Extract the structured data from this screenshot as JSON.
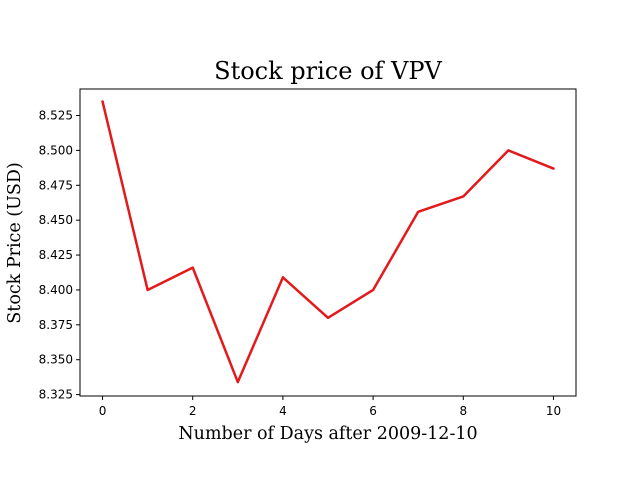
{
  "chart_data": {
    "type": "line",
    "title": "Stock price of VPV",
    "xlabel": "Number of Days after 2009-12-10",
    "ylabel": "Stock Price (USD)",
    "x": [
      0,
      1,
      2,
      3,
      4,
      5,
      6,
      7,
      8,
      9,
      10
    ],
    "series": [
      {
        "values": [
          8.535,
          8.4,
          8.416,
          8.334,
          8.409,
          8.38,
          8.4,
          8.456,
          8.467,
          8.5,
          8.487
        ],
        "color": "#e31a1c"
      }
    ],
    "xlim": [
      -0.5,
      10.5
    ],
    "ylim": [
      8.324,
      8.544
    ],
    "xticks": [
      0,
      2,
      4,
      6,
      8,
      10
    ],
    "xtick_labels": [
      "0",
      "2",
      "4",
      "6",
      "8",
      "10"
    ],
    "yticks": [
      8.325,
      8.35,
      8.375,
      8.4,
      8.425,
      8.45,
      8.475,
      8.5,
      8.525
    ],
    "ytick_labels": [
      "8.325",
      "8.350",
      "8.375",
      "8.400",
      "8.425",
      "8.450",
      "8.475",
      "8.500",
      "8.525"
    ],
    "grid": false,
    "legend": "none"
  }
}
